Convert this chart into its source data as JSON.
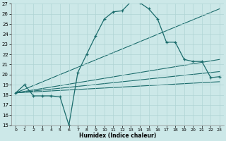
{
  "xlabel": "Humidex (Indice chaleur)",
  "bg_color": "#cce8e8",
  "line_color": "#1a6b6b",
  "xlim": [
    -0.5,
    23.5
  ],
  "ylim": [
    15,
    27
  ],
  "yticks": [
    15,
    16,
    17,
    18,
    19,
    20,
    21,
    22,
    23,
    24,
    25,
    26,
    27
  ],
  "xticks": [
    0,
    1,
    2,
    3,
    4,
    5,
    6,
    7,
    8,
    9,
    10,
    11,
    12,
    13,
    14,
    15,
    16,
    17,
    18,
    19,
    20,
    21,
    22,
    23
  ],
  "series1_x": [
    0,
    1,
    2,
    3,
    4,
    5,
    6,
    7,
    8,
    9,
    10,
    11,
    12,
    13,
    14,
    15,
    16,
    17,
    18,
    19,
    20,
    21,
    22,
    23
  ],
  "series1_y": [
    18.2,
    19.0,
    17.9,
    17.9,
    17.9,
    17.8,
    15.0,
    20.2,
    22.0,
    23.8,
    25.5,
    26.2,
    26.3,
    27.2,
    27.1,
    26.5,
    25.5,
    23.2,
    23.2,
    21.5,
    21.3,
    21.3,
    19.7,
    19.8
  ],
  "series2_x": [
    0,
    23
  ],
  "series2_y": [
    18.2,
    26.5
  ],
  "series3_x": [
    0,
    23
  ],
  "series3_y": [
    18.2,
    21.5
  ],
  "series4_x": [
    0,
    23
  ],
  "series4_y": [
    18.2,
    19.3
  ],
  "series5_x": [
    0,
    23
  ],
  "series5_y": [
    18.2,
    20.3
  ]
}
